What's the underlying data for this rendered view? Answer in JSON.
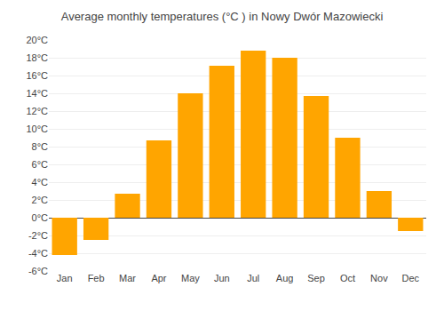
{
  "chart_data": {
    "type": "bar",
    "title": "Average monthly temperatures (°C ) in Nowy Dwór Mazowiecki",
    "categories": [
      "Jan",
      "Feb",
      "Mar",
      "Apr",
      "May",
      "Jun",
      "Jul",
      "Aug",
      "Sep",
      "Oct",
      "Nov",
      "Dec"
    ],
    "values": [
      -4.2,
      -2.5,
      2.7,
      8.7,
      14.0,
      17.1,
      18.8,
      18.0,
      13.7,
      9.0,
      3.0,
      -1.5
    ],
    "color": "#FFA500",
    "ylim": [
      -6,
      20
    ],
    "yticks": [
      {
        "value": -6,
        "label": "-6°C"
      },
      {
        "value": -4,
        "label": "-4°C"
      },
      {
        "value": -2,
        "label": "-2°C"
      },
      {
        "value": 0,
        "label": "0°C"
      },
      {
        "value": 2,
        "label": "2°C"
      },
      {
        "value": 4,
        "label": "4°C"
      },
      {
        "value": 6,
        "label": "6°C"
      },
      {
        "value": 8,
        "label": "8°C"
      },
      {
        "value": 10,
        "label": "10°C"
      },
      {
        "value": 12,
        "label": "12°C"
      },
      {
        "value": 14,
        "label": "14°C"
      },
      {
        "value": 16,
        "label": "16°C"
      },
      {
        "value": 18,
        "label": "18°C"
      },
      {
        "value": 20,
        "label": "20°C"
      }
    ],
    "grid": true
  }
}
